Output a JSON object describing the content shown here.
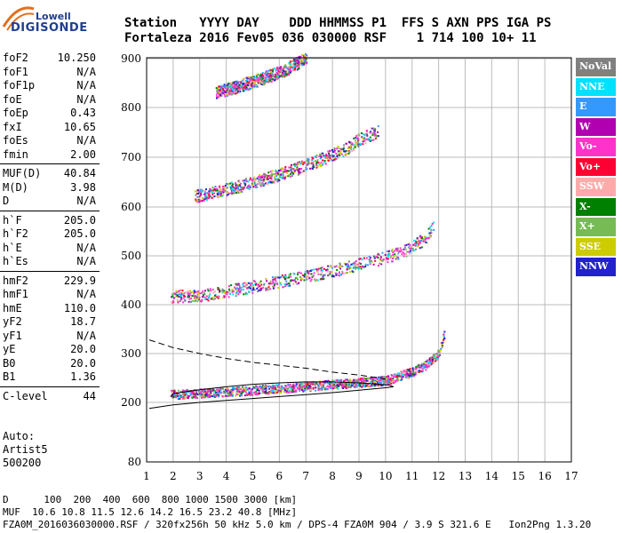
{
  "logo": {
    "line1": "Lowell",
    "line2": "DIGISONDE"
  },
  "header": {
    "line1": "Station   YYYY DAY    DDD HHMMSS P1  FFS S AXN PPS IGA PS",
    "line2": "Fortaleza 2016 Fev05 036 030000 RSF    1 714 100 10+ 11"
  },
  "params": [
    [
      [
        "foF2",
        "10.250"
      ],
      [
        "foF1",
        "N/A"
      ],
      [
        "foF1p",
        "N/A"
      ],
      [
        "foE",
        "N/A"
      ],
      [
        "foEp",
        "0.43"
      ],
      [
        "fxI",
        "10.65"
      ],
      [
        "foEs",
        "N/A"
      ],
      [
        "fmin",
        "2.00"
      ]
    ],
    [
      [
        "MUF(D)",
        "40.84"
      ],
      [
        "M(D)",
        "3.98"
      ],
      [
        "D",
        "N/A"
      ]
    ],
    [
      [
        "h`F",
        "205.0"
      ],
      [
        "h`F2",
        "205.0"
      ],
      [
        "h`E",
        "N/A"
      ],
      [
        "h`Es",
        "N/A"
      ]
    ],
    [
      [
        "hmF2",
        "229.9"
      ],
      [
        "hmF1",
        "N/A"
      ],
      [
        "hmE",
        "110.0"
      ],
      [
        "yF2",
        "18.7"
      ],
      [
        "yF1",
        "N/A"
      ],
      [
        "yE",
        "20.0"
      ],
      [
        "B0",
        "20.0"
      ],
      [
        "B1",
        "1.36"
      ]
    ],
    [
      [
        "C-level",
        "44"
      ]
    ]
  ],
  "artist": {
    "l1": "Auto:",
    "l2": "Artist5",
    "l3": "500200"
  },
  "footer": {
    "d_line": "D      100  200  400  600  800 1000 1500 3000 [km]",
    "muf_line": "MUF  10.6 10.8 11.5 12.6 14.2 16.5 23.2 40.8 [MHz]",
    "file_line": "FZA0M_2016036030000.RSF / 320fx256h 50 kHz 5.0 km / DPS-4 FZA0M 904 / 3.9 S 321.6 E   Ion2Png 1.3.20"
  },
  "legend": [
    {
      "label": "NoVal",
      "color": "#808080"
    },
    {
      "label": "NNE",
      "color": "#00e0ff"
    },
    {
      "label": "E",
      "color": "#3399ff"
    },
    {
      "label": "W",
      "color": "#b000b0"
    },
    {
      "label": "Vo-",
      "color": "#ff33cc"
    },
    {
      "label": "Vo+",
      "color": "#ff0033"
    },
    {
      "label": "SSW",
      "color": "#ffaaaa"
    },
    {
      "label": "X-",
      "color": "#008000"
    },
    {
      "label": "X+",
      "color": "#77bb55"
    },
    {
      "label": "SSE",
      "color": "#cccc00"
    },
    {
      "label": "NNW",
      "color": "#2222cc"
    }
  ],
  "chart_data": {
    "type": "scatter",
    "x_ticks": [
      "1",
      "2",
      "3",
      "4",
      "5",
      "6",
      "7",
      "8",
      "9",
      "10",
      "11",
      "12",
      "13",
      "14",
      "15",
      "16",
      "17"
    ],
    "y_ticks": [
      "80",
      "200",
      "300",
      "400",
      "500",
      "600",
      "700",
      "800",
      "900"
    ],
    "xlim": [
      1,
      17
    ],
    "y_scale": "nonlinear",
    "grid": true,
    "traces": [
      {
        "name": "o-trace",
        "points": [
          [
            1.9,
            215
          ],
          [
            3,
            218
          ],
          [
            4,
            221
          ],
          [
            5,
            224
          ],
          [
            6,
            228
          ],
          [
            7,
            232
          ],
          [
            8,
            236
          ],
          [
            9,
            240
          ],
          [
            10,
            244
          ],
          [
            10.6,
            255
          ],
          [
            11,
            262
          ],
          [
            11.5,
            275
          ],
          [
            12,
            300
          ],
          [
            12.2,
            340
          ]
        ]
      },
      {
        "name": "2F",
        "points": [
          [
            1.9,
            415
          ],
          [
            3,
            418
          ],
          [
            4,
            426
          ],
          [
            5,
            436
          ],
          [
            6,
            446
          ],
          [
            7,
            456
          ],
          [
            8,
            468
          ],
          [
            9,
            482
          ],
          [
            10,
            496
          ],
          [
            10.8,
            510
          ],
          [
            11.5,
            535
          ],
          [
            11.8,
            560
          ]
        ]
      },
      {
        "name": "3F",
        "points": [
          [
            2.8,
            620
          ],
          [
            3.5,
            628
          ],
          [
            4.5,
            640
          ],
          [
            5.5,
            656
          ],
          [
            6.5,
            673
          ],
          [
            7.5,
            693
          ],
          [
            8.5,
            716
          ],
          [
            9,
            735
          ],
          [
            9.7,
            750
          ]
        ]
      },
      {
        "name": "4F",
        "points": [
          [
            3.6,
            830
          ],
          [
            4.2,
            838
          ],
          [
            5.2,
            855
          ],
          [
            6.2,
            875
          ],
          [
            7,
            900
          ]
        ]
      }
    ],
    "hprofile_upper": [
      [
        1.1,
        328
      ],
      [
        2,
        312
      ],
      [
        3,
        300
      ],
      [
        4,
        290
      ],
      [
        5,
        282
      ],
      [
        6,
        276
      ],
      [
        7,
        270
      ],
      [
        8,
        262
      ],
      [
        9,
        256
      ],
      [
        10,
        248
      ]
    ],
    "hprofile_lower": [
      [
        1.1,
        188
      ],
      [
        2,
        195
      ],
      [
        3,
        200
      ],
      [
        4,
        204
      ],
      [
        5,
        208
      ],
      [
        6,
        212
      ],
      [
        7,
        216
      ],
      [
        8,
        220
      ],
      [
        9,
        225
      ],
      [
        10,
        230
      ],
      [
        10.3,
        232
      ],
      [
        10.1,
        236
      ],
      [
        9,
        240
      ],
      [
        8,
        242
      ],
      [
        7,
        242
      ],
      [
        6,
        240
      ],
      [
        5,
        237
      ],
      [
        4,
        232
      ],
      [
        3,
        226
      ],
      [
        2,
        218
      ],
      [
        1.9,
        212
      ]
    ]
  }
}
